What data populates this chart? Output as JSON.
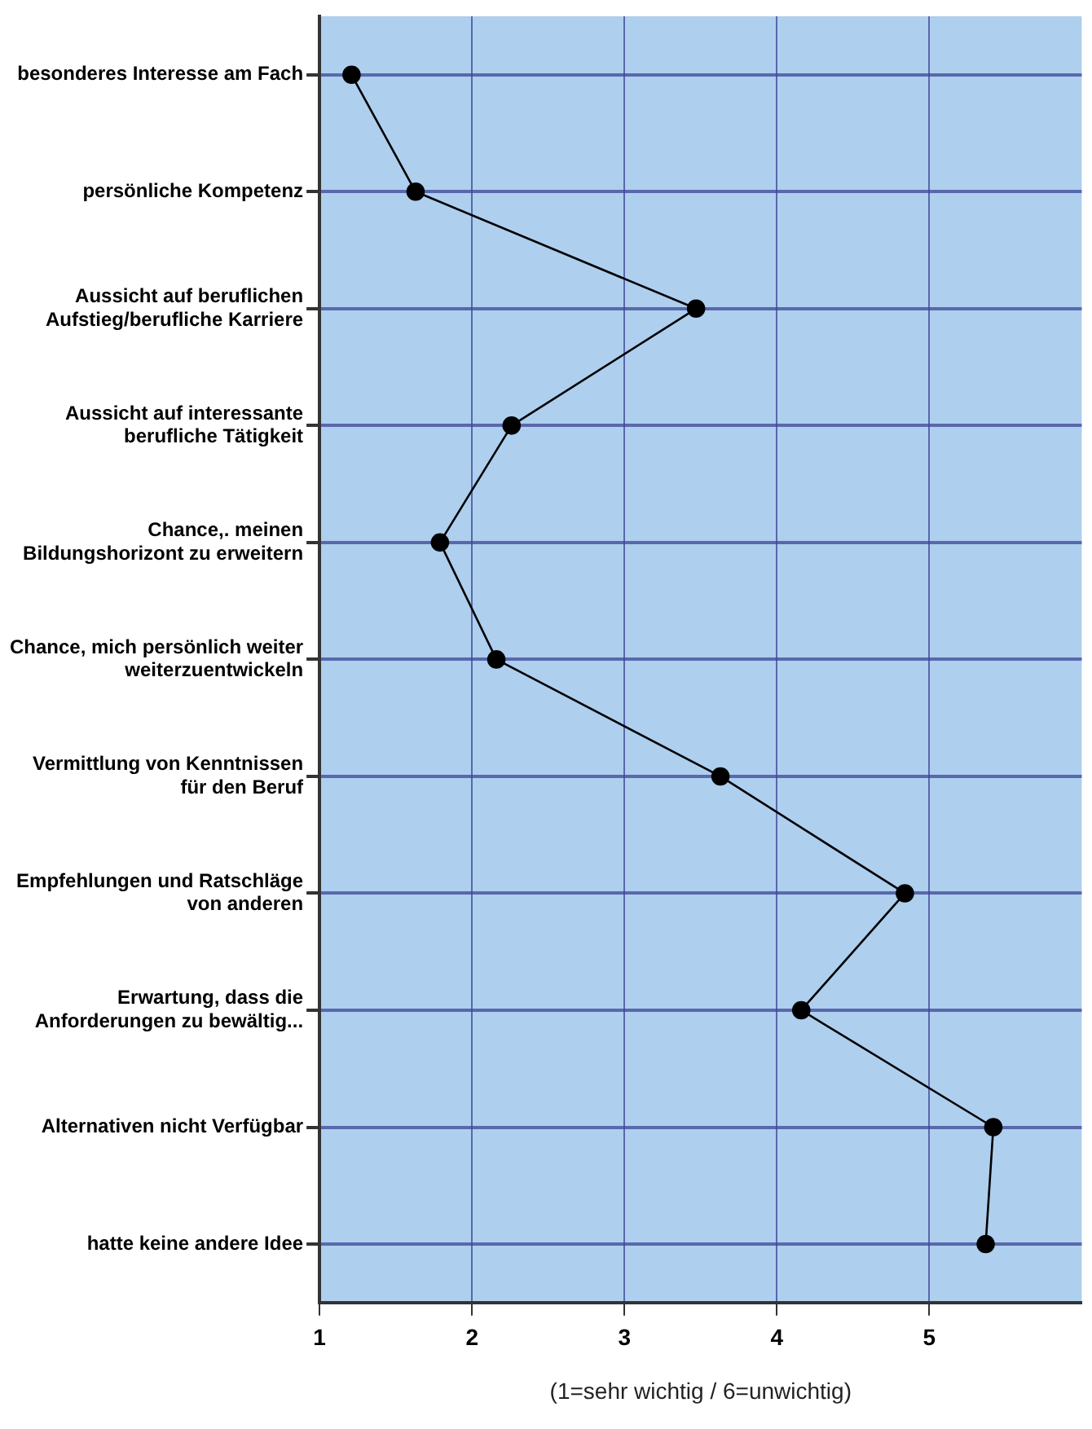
{
  "chart_data": {
    "type": "line",
    "orientation": "horizontal",
    "xlabel": "(1=sehr wichtig / 6=unwichtig)",
    "categories": [
      "besonderes Interesse am Fach",
      "persönliche Kompetenz",
      "Aussicht auf beruflichen Aufstieg/berufliche Karriere",
      "Aussicht auf interessante berufliche Tätigkeit",
      "Chance,. meinen Bildungshorizont zu erweitern",
      "Chance, mich persönlich weiter weiterzuentwickeln",
      "Vermittlung von Kenntnissen für den Beruf",
      "Empfehlungen und Ratschläge von anderen",
      "Erwartung, dass die Anforderungen zu bewältig...",
      "Alternativen nicht Verfügbar",
      "hatte keine andere Idee"
    ],
    "series": [
      {
        "color": "#000000",
        "values": [
          1.21,
          1.63,
          3.47,
          2.26,
          1.79,
          2.16,
          3.63,
          4.84,
          4.16,
          5.42,
          5.37
        ]
      }
    ],
    "xlim": [
      1,
      6
    ],
    "xticks": [
      1,
      2,
      3,
      4,
      5
    ],
    "grid": true,
    "marker": "circle",
    "line_style": "solid",
    "legend": false
  }
}
